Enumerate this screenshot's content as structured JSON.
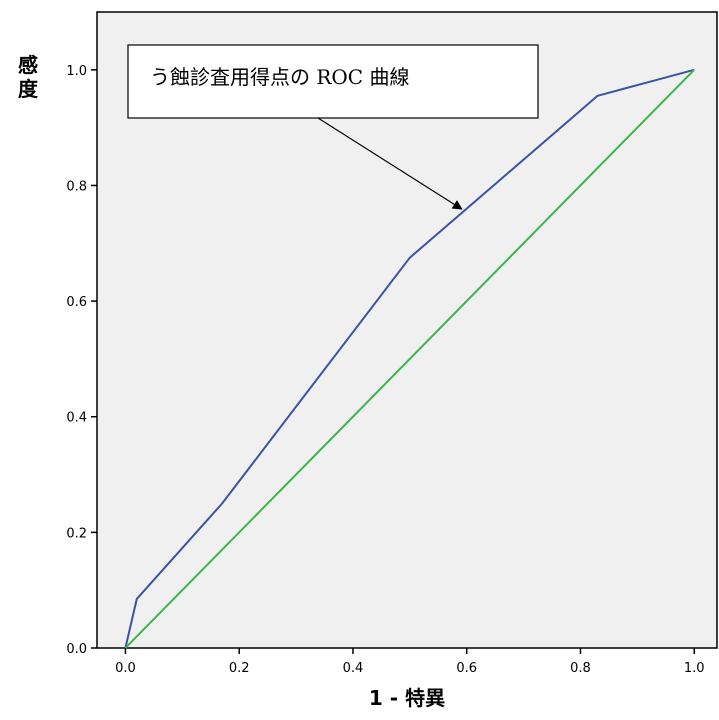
{
  "chart_data": {
    "type": "line",
    "xlabel": "1 - 特異",
    "ylabel": "感度",
    "xlim": [
      -0.05,
      1.04
    ],
    "ylim": [
      0.0,
      1.1
    ],
    "xticks": [
      "0.0",
      "0.2",
      "0.4",
      "0.6",
      "0.8",
      "1.0"
    ],
    "yticks": [
      "0.0",
      "0.2",
      "0.4",
      "0.6",
      "0.8",
      "1.0"
    ],
    "grid": false,
    "background": "#f0f0f0",
    "series": [
      {
        "color": "#3a53a4",
        "x": [
          0.0,
          0.02,
          0.17,
          0.5,
          0.83,
          1.0
        ],
        "y": [
          0.0,
          0.085,
          0.25,
          0.675,
          0.955,
          1.0
        ]
      },
      {
        "color": "#3cb44a",
        "x": [
          0.0,
          1.0
        ],
        "y": [
          0.0,
          1.0
        ]
      }
    ],
    "annotation": {
      "text": "う蝕診査用得点の ROC 曲線",
      "arrow_to": [
        0.59,
        0.76
      ]
    }
  }
}
